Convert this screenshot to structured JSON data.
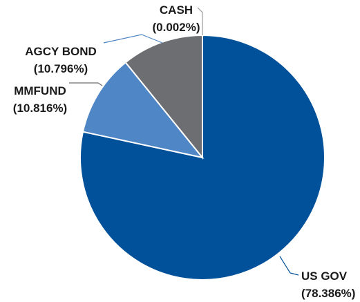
{
  "chart_data": {
    "type": "pie",
    "title": "",
    "start_angle_deg": 0,
    "direction": "clockwise",
    "slices": [
      {
        "name": "US GOV",
        "value": 78.386,
        "label": "US GOV",
        "percent_label": "(78.386%)",
        "color": "#00519A"
      },
      {
        "name": "CASH",
        "value": 0.002,
        "label": "CASH",
        "percent_label": "(0.002%)",
        "color": "#4A90D9"
      },
      {
        "name": "AGCY BOND",
        "value": 10.796,
        "label": "AGCY BOND",
        "percent_label": "(10.796%)",
        "color": "#4F86C6"
      },
      {
        "name": "MMFUND",
        "value": 10.816,
        "label": "MMFUND",
        "percent_label": "(10.816%)",
        "color": "#6D6E71"
      }
    ],
    "legend": "none",
    "labels_outside_with_leaders": true
  }
}
